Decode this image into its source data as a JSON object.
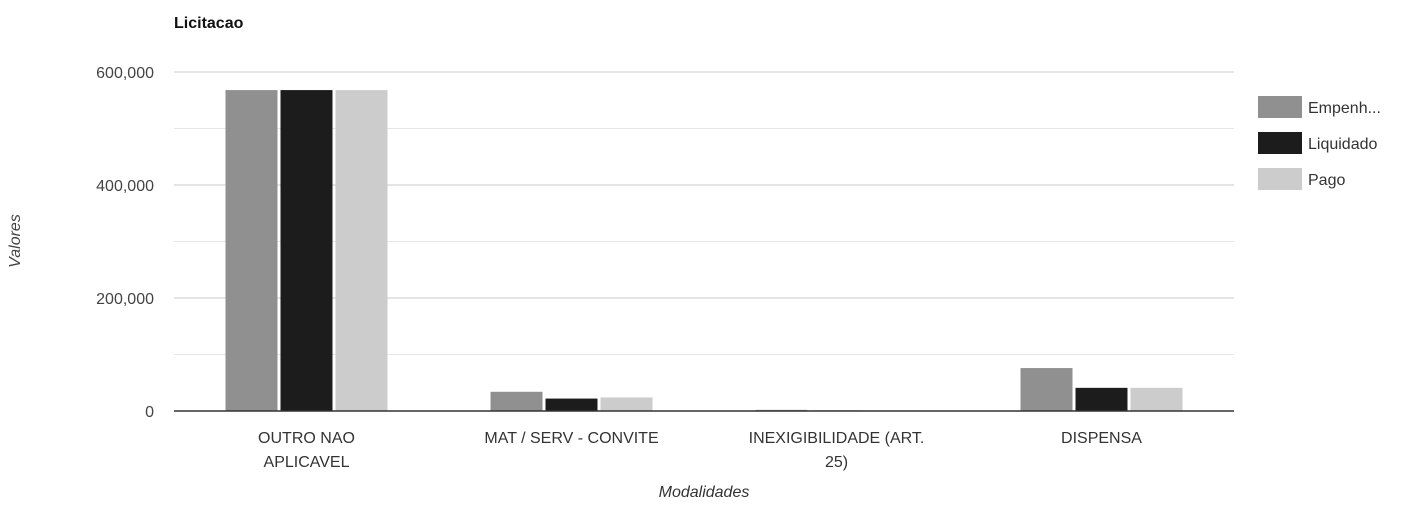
{
  "chart_data": {
    "type": "bar",
    "title": "Licitacao",
    "xlabel": "Modalidades",
    "ylabel": "Valores",
    "categories": [
      [
        "OUTRO NAO",
        "APLICAVEL"
      ],
      [
        "MAT / SERV - CONVITE"
      ],
      [
        "INEXIGIBILIDADE (ART.",
        "25)"
      ],
      [
        "DISPENSA"
      ]
    ],
    "series": [
      {
        "name": "Empenh...",
        "color": "#909090",
        "values": [
          568000,
          34000,
          2000,
          76000
        ]
      },
      {
        "name": "Liquidado",
        "color": "#1c1c1c",
        "values": [
          568000,
          22000,
          1000,
          41000
        ]
      },
      {
        "name": "Pago",
        "color": "#cccccc",
        "values": [
          568000,
          24000,
          1000,
          41000
        ]
      }
    ],
    "ylim": [
      0,
      600000
    ],
    "yticks": [
      0,
      200000,
      400000,
      600000
    ],
    "ytick_labels": [
      "0",
      "200,000",
      "400,000",
      "600,000"
    ],
    "grid": true,
    "legend_position": "right"
  }
}
